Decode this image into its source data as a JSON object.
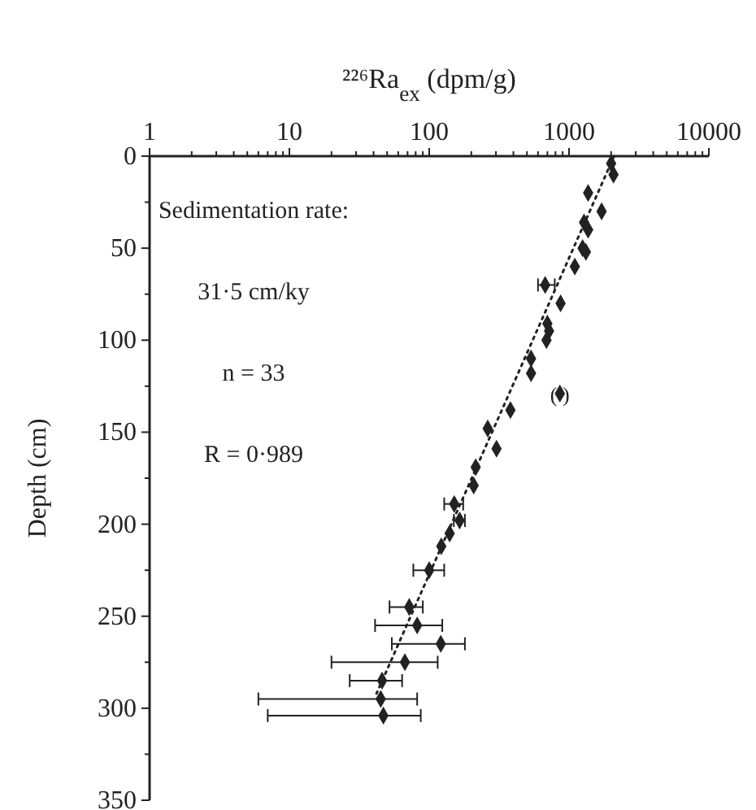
{
  "chart_data": {
    "type": "scatter",
    "xlabel": "²²⁶Ra$_{ex}$ (dpm/g)",
    "ylabel": "Depth (cm)",
    "log": "x",
    "xlim": [
      1,
      10000
    ],
    "ylim": [
      350,
      0
    ],
    "xticks": [
      1,
      {
        "value": 2,
        "label": null
      },
      {
        "value": 3,
        "label": null
      },
      {
        "value": 4,
        "label": null
      },
      {
        "value": 5,
        "label": null
      },
      {
        "value": 6,
        "label": null
      },
      {
        "value": 7,
        "label": null
      },
      {
        "value": 8,
        "label": null
      },
      {
        "value": 9,
        "label": null
      },
      10,
      {
        "value": 20,
        "label": null
      },
      {
        "value": 30,
        "label": null
      },
      {
        "value": 40,
        "label": null
      },
      {
        "value": 50,
        "label": null
      },
      {
        "value": 60,
        "label": null
      },
      {
        "value": 70,
        "label": null
      },
      {
        "value": 80,
        "label": null
      },
      {
        "value": 90,
        "label": null
      },
      100,
      {
        "value": 200,
        "label": null
      },
      {
        "value": 300,
        "label": null
      },
      {
        "value": 400,
        "label": null
      },
      {
        "value": 500,
        "label": null
      },
      {
        "value": 600,
        "label": null
      },
      {
        "value": 700,
        "label": null
      },
      {
        "value": 800,
        "label": null
      },
      {
        "value": 900,
        "label": null
      },
      1000,
      {
        "value": 2000,
        "label": null
      },
      {
        "value": 3000,
        "label": null
      },
      {
        "value": 4000,
        "label": null
      },
      {
        "value": 5000,
        "label": null
      },
      {
        "value": 6000,
        "label": null
      },
      {
        "value": 7000,
        "label": null
      },
      {
        "value": 8000,
        "label": null
      },
      {
        "value": 9000,
        "label": null
      },
      10000
    ],
    "yticks": [
      0,
      {
        "value": 25,
        "label": null
      },
      50,
      {
        "value": 75,
        "label": null
      },
      100,
      {
        "value": 125,
        "label": null
      },
      150,
      {
        "value": 175,
        "label": null
      },
      200,
      {
        "value": 225,
        "label": null
      },
      250,
      {
        "value": 275,
        "label": null
      },
      300,
      {
        "value": 325,
        "label": null
      },
      350
    ],
    "series": [
      {
        "type": "scatter",
        "color": "#222222",
        "marker": "diamond",
        "x": [
          2000,
          2080,
          1370,
          1710,
          1280,
          1370,
          1250,
          1320,
          1100,
          675,
          870,
          700,
          720,
          690,
          535,
          535,
          860,
          381,
          262,
          303,
          215,
          208,
          151,
          165,
          140,
          122,
          100,
          72,
          82,
          121,
          67,
          46,
          45,
          47
        ],
        "values": [
          4,
          10,
          20,
          30,
          36,
          40,
          50,
          52,
          60,
          70,
          80,
          91,
          95,
          100,
          110,
          118,
          129,
          138,
          148,
          159,
          169,
          179,
          189,
          198,
          205,
          212,
          225,
          245,
          255,
          265,
          275,
          285,
          295,
          304
        ],
        "xerrors": [
          null,
          null,
          null,
          null,
          null,
          null,
          null,
          null,
          null,
          [
            600,
            790
          ],
          null,
          null,
          null,
          null,
          null,
          null,
          null,
          null,
          null,
          null,
          null,
          null,
          [
            128,
            175
          ],
          [
            150,
            180
          ],
          null,
          null,
          [
            77,
            128
          ],
          [
            52,
            90
          ],
          [
            41,
            124
          ],
          [
            54,
            180
          ],
          [
            20,
            115
          ],
          [
            27,
            64
          ],
          [
            6,
            82
          ],
          [
            7,
            87
          ]
        ]
      },
      {
        "type": "line",
        "color": "#222222",
        "line_style": "dotted",
        "x": [
          2100,
          42
        ],
        "values": [
          0,
          292
        ]
      }
    ],
    "annotations": [
      "Sedimentation rate:",
      "31·5 cm/ky",
      "n = 33",
      "R = 0·989",
      {
        "text": "(    )",
        "x": 860,
        "y": 129
      }
    ]
  }
}
